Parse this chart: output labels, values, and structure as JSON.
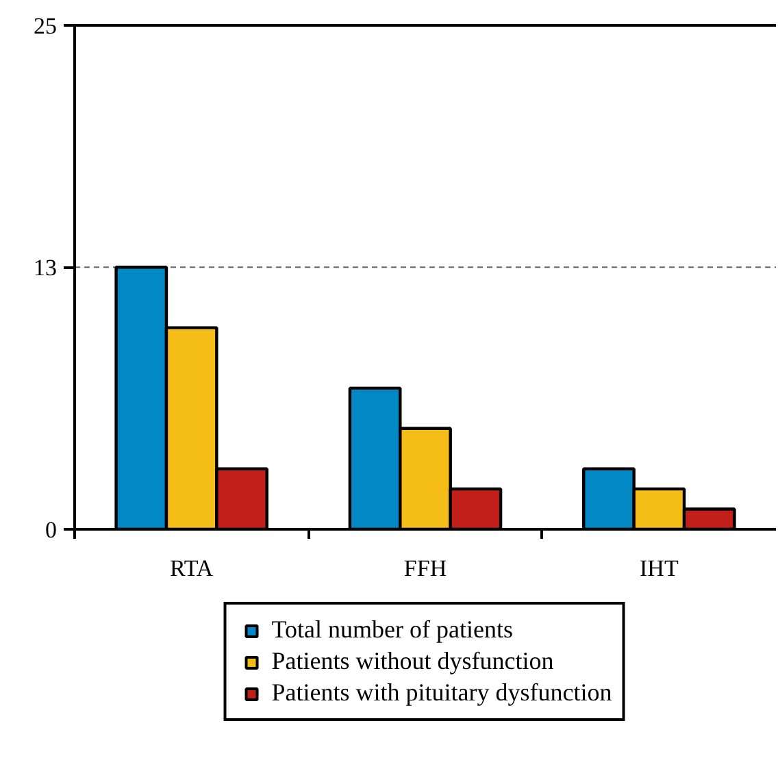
{
  "chart_data": {
    "type": "bar",
    "categories": [
      "RTA",
      "FFH",
      "IHT"
    ],
    "series": [
      {
        "name": "Total number of patients",
        "color": "#0388c6",
        "values": [
          13,
          7,
          3
        ]
      },
      {
        "name": "Patients without dysfunction",
        "color": "#f4bd17",
        "values": [
          10,
          5,
          2
        ]
      },
      {
        "name": "Patients with pituitary dysfunction",
        "color": "#c21f1a",
        "values": [
          3,
          2,
          1
        ]
      }
    ],
    "ylim": [
      0,
      25
    ],
    "yticks": [
      0,
      13,
      25
    ],
    "grid": false,
    "legend": "bottom",
    "ref_lines": [
      {
        "axis": "y",
        "value": 13,
        "color": "#666666",
        "line_style": "dashed"
      }
    ]
  }
}
